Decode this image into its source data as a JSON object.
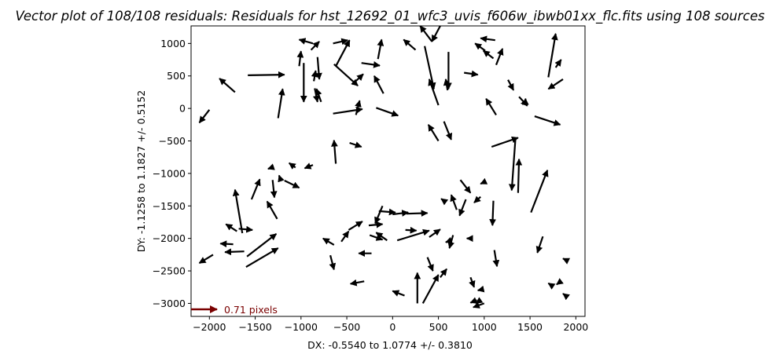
{
  "chart_data": {
    "type": "quiver",
    "title": "Vector plot of 108/108 residuals: Residuals for hst_12692_01_wfc3_uvis_f606w_ibwb01xx_flc.fits using 108 sources",
    "xlabel": "DX: -0.5540 to 1.0774 +/- 0.3810",
    "ylabel": "DY: -1.1258 to 1.1827 +/- 0.5152",
    "xlim": [
      -2200,
      2100
    ],
    "ylim": [
      -3200,
      1270
    ],
    "x_ticks": [
      -2000,
      -1500,
      -1000,
      -500,
      0,
      500,
      1000,
      1500,
      2000
    ],
    "y_ticks": [
      -3000,
      -2500,
      -2000,
      -1500,
      -1000,
      -500,
      0,
      500,
      1000
    ],
    "x_tick_labels": [
      "−2000",
      "−1500",
      "−1000",
      "−500",
      "0",
      "500",
      "1000",
      "1500",
      "2000"
    ],
    "y_tick_labels": [
      "−3000",
      "−2500",
      "−2000",
      "−1500",
      "−1000",
      "−500",
      "0",
      "500",
      "1000"
    ],
    "grid": false,
    "arrow_color": "#000000",
    "key": {
      "label": "0.71 pixels",
      "color": "#7a0000"
    },
    "vectors": [
      {
        "x": -1580,
        "y": 510,
        "x2": -1180,
        "y2": 520
      },
      {
        "x": -1720,
        "y": 250,
        "x2": -1890,
        "y2": 460
      },
      {
        "x": -2000,
        "y": -20,
        "x2": -2110,
        "y2": -220
      },
      {
        "x": -1020,
        "y": 650,
        "x2": -1000,
        "y2": 880
      },
      {
        "x": -970,
        "y": 700,
        "x2": -970,
        "y2": 100
      },
      {
        "x": -820,
        "y": 790,
        "x2": -800,
        "y2": 450
      },
      {
        "x": -890,
        "y": 900,
        "x2": -800,
        "y2": 1030
      },
      {
        "x": -870,
        "y": 1000,
        "x2": -1020,
        "y2": 1060
      },
      {
        "x": -850,
        "y": 310,
        "x2": -820,
        "y2": 100
      },
      {
        "x": -860,
        "y": 420,
        "x2": -840,
        "y2": 580
      },
      {
        "x": -780,
        "y": 100,
        "x2": -830,
        "y2": 300
      },
      {
        "x": -1250,
        "y": -150,
        "x2": -1200,
        "y2": 300
      },
      {
        "x": -650,
        "y": 1000,
        "x2": -490,
        "y2": 1050
      },
      {
        "x": -620,
        "y": 650,
        "x2": -470,
        "y2": 1050
      },
      {
        "x": -640,
        "y": 680,
        "x2": -380,
        "y2": 350
      },
      {
        "x": -440,
        "y": 370,
        "x2": -320,
        "y2": 530
      },
      {
        "x": -160,
        "y": 760,
        "x2": -120,
        "y2": 1060
      },
      {
        "x": -340,
        "y": 700,
        "x2": -140,
        "y2": 660
      },
      {
        "x": -100,
        "y": 230,
        "x2": -200,
        "y2": 500
      },
      {
        "x": -650,
        "y": -80,
        "x2": -330,
        "y2": -10
      },
      {
        "x": -400,
        "y": -100,
        "x2": -360,
        "y2": 120
      },
      {
        "x": -180,
        "y": 10,
        "x2": 60,
        "y2": -110
      },
      {
        "x": 250,
        "y": 900,
        "x2": 120,
        "y2": 1060
      },
      {
        "x": 520,
        "y": 1270,
        "x2": 430,
        "y2": 1030
      },
      {
        "x": 430,
        "y": 1030,
        "x2": 300,
        "y2": 1270
      },
      {
        "x": 350,
        "y": 960,
        "x2": 450,
        "y2": 300
      },
      {
        "x": 500,
        "y": 50,
        "x2": 400,
        "y2": 450
      },
      {
        "x": 610,
        "y": 870,
        "x2": 610,
        "y2": 300
      },
      {
        "x": 600,
        "y": 280,
        "x2": 580,
        "y2": 450
      },
      {
        "x": 780,
        "y": 550,
        "x2": 930,
        "y2": 520
      },
      {
        "x": 1010,
        "y": 890,
        "x2": 900,
        "y2": 1000
      },
      {
        "x": 1100,
        "y": 770,
        "x2": 990,
        "y2": 890
      },
      {
        "x": 1130,
        "y": 670,
        "x2": 1200,
        "y2": 920
      },
      {
        "x": 1260,
        "y": 440,
        "x2": 1320,
        "y2": 280
      },
      {
        "x": 1380,
        "y": 180,
        "x2": 1470,
        "y2": 40
      },
      {
        "x": 1450,
        "y": 60,
        "x2": 1450,
        "y2": 150
      },
      {
        "x": 1120,
        "y": 1050,
        "x2": 960,
        "y2": 1080
      },
      {
        "x": 1130,
        "y": -100,
        "x2": 1020,
        "y2": 150
      },
      {
        "x": 1700,
        "y": 480,
        "x2": 1780,
        "y2": 1150
      },
      {
        "x": 1860,
        "y": 450,
        "x2": 1700,
        "y2": 300
      },
      {
        "x": 1780,
        "y": 630,
        "x2": 1840,
        "y2": 750
      },
      {
        "x": 1550,
        "y": -120,
        "x2": 1830,
        "y2": -250
      },
      {
        "x": 1080,
        "y": -590,
        "x2": 1370,
        "y2": -450
      },
      {
        "x": 1340,
        "y": -470,
        "x2": 1300,
        "y2": -1260
      },
      {
        "x": 1370,
        "y": -1300,
        "x2": 1380,
        "y2": -780
      },
      {
        "x": 1510,
        "y": -1600,
        "x2": 1690,
        "y2": -950
      },
      {
        "x": 500,
        "y": -500,
        "x2": 390,
        "y2": -250
      },
      {
        "x": 560,
        "y": -200,
        "x2": 640,
        "y2": -480
      },
      {
        "x": 740,
        "y": -1100,
        "x2": 850,
        "y2": -1300
      },
      {
        "x": 960,
        "y": -1360,
        "x2": 890,
        "y2": -1450
      },
      {
        "x": 700,
        "y": -1560,
        "x2": 640,
        "y2": -1330
      },
      {
        "x": 800,
        "y": -1400,
        "x2": 730,
        "y2": -1650
      },
      {
        "x": 1100,
        "y": -1420,
        "x2": 1090,
        "y2": -1800
      },
      {
        "x": 1110,
        "y": -2180,
        "x2": 1140,
        "y2": -2430
      },
      {
        "x": 1640,
        "y": -1970,
        "x2": 1580,
        "y2": -2220
      },
      {
        "x": 660,
        "y": -1950,
        "x2": 620,
        "y2": -2150
      },
      {
        "x": 850,
        "y": -2600,
        "x2": 890,
        "y2": -2750
      },
      {
        "x": 920,
        "y": -2950,
        "x2": 850,
        "y2": -2990
      },
      {
        "x": 1000,
        "y": -3000,
        "x2": 880,
        "y2": -3060
      },
      {
        "x": 520,
        "y": -2600,
        "x2": 590,
        "y2": -2470
      },
      {
        "x": 330,
        "y": -3000,
        "x2": 500,
        "y2": -2560
      },
      {
        "x": 270,
        "y": -3000,
        "x2": 270,
        "y2": -2530
      },
      {
        "x": 130,
        "y": -2880,
        "x2": 0,
        "y2": -2810
      },
      {
        "x": -310,
        "y": -2660,
        "x2": -460,
        "y2": -2700
      },
      {
        "x": -680,
        "y": -2260,
        "x2": -640,
        "y2": -2480
      },
      {
        "x": -230,
        "y": -2230,
        "x2": -370,
        "y2": -2230
      },
      {
        "x": -60,
        "y": -2030,
        "x2": -180,
        "y2": -1910
      },
      {
        "x": -250,
        "y": -1950,
        "x2": -110,
        "y2": -2020
      },
      {
        "x": 380,
        "y": -2290,
        "x2": 440,
        "y2": -2500
      },
      {
        "x": 50,
        "y": -2030,
        "x2": 400,
        "y2": -1880
      },
      {
        "x": 140,
        "y": -1870,
        "x2": 260,
        "y2": -1880
      },
      {
        "x": 400,
        "y": -1980,
        "x2": 520,
        "y2": -1860
      },
      {
        "x": -150,
        "y": -1580,
        "x2": 30,
        "y2": -1600
      },
      {
        "x": 0,
        "y": -1630,
        "x2": 170,
        "y2": -1600
      },
      {
        "x": 150,
        "y": -1620,
        "x2": 380,
        "y2": -1610
      },
      {
        "x": -480,
        "y": -1870,
        "x2": -330,
        "y2": -1740
      },
      {
        "x": -260,
        "y": -1800,
        "x2": -110,
        "y2": -1780
      },
      {
        "x": -110,
        "y": -1500,
        "x2": -190,
        "y2": -1770
      },
      {
        "x": -560,
        "y": -2050,
        "x2": -480,
        "y2": -1890
      },
      {
        "x": -640,
        "y": -2100,
        "x2": -760,
        "y2": -2000
      },
      {
        "x": -620,
        "y": -850,
        "x2": -640,
        "y2": -490
      },
      {
        "x": -470,
        "y": -530,
        "x2": -340,
        "y2": -590
      },
      {
        "x": -1060,
        "y": -910,
        "x2": -1130,
        "y2": -840
      },
      {
        "x": -870,
        "y": -870,
        "x2": -960,
        "y2": -920
      },
      {
        "x": -1180,
        "y": -1110,
        "x2": -1020,
        "y2": -1220
      },
      {
        "x": -1220,
        "y": -1110,
        "x2": -1240,
        "y2": -1030
      },
      {
        "x": -1310,
        "y": -1100,
        "x2": -1290,
        "y2": -1370
      },
      {
        "x": -1260,
        "y": -1700,
        "x2": -1370,
        "y2": -1430
      },
      {
        "x": -1540,
        "y": -1400,
        "x2": -1450,
        "y2": -1090
      },
      {
        "x": -1640,
        "y": -1920,
        "x2": -1720,
        "y2": -1250
      },
      {
        "x": -1680,
        "y": -1850,
        "x2": -1530,
        "y2": -1870
      },
      {
        "x": -1700,
        "y": -1890,
        "x2": -1820,
        "y2": -1780
      },
      {
        "x": -1740,
        "y": -2090,
        "x2": -1880,
        "y2": -2080
      },
      {
        "x": -1620,
        "y": -2200,
        "x2": -1830,
        "y2": -2210
      },
      {
        "x": -1600,
        "y": -2440,
        "x2": -1250,
        "y2": -2150
      },
      {
        "x": -1960,
        "y": -2250,
        "x2": -2110,
        "y2": -2380
      },
      {
        "x": -1590,
        "y": -2280,
        "x2": -1270,
        "y2": -1930
      },
      {
        "x": 1800,
        "y": -2700,
        "x2": 1790,
        "y2": -2710
      },
      {
        "x": 1870,
        "y": -2860,
        "x2": 1860,
        "y2": -2850
      },
      {
        "x": 1890,
        "y": -2330,
        "x2": 1860,
        "y2": -2310
      },
      {
        "x": 540,
        "y": -1400,
        "x2": 530,
        "y2": -1390
      },
      {
        "x": 820,
        "y": -2000,
        "x2": 810,
        "y2": -2000
      },
      {
        "x": 990,
        "y": -1140,
        "x2": 960,
        "y2": -1160
      },
      {
        "x": 960,
        "y": -2790,
        "x2": 930,
        "y2": -2800
      },
      {
        "x": 930,
        "y": -2980,
        "x2": 910,
        "y2": -3000
      },
      {
        "x": 1710,
        "y": -2700,
        "x2": 1700,
        "y2": -2690
      },
      {
        "x": 600,
        "y": -2050,
        "x2": 580,
        "y2": -2060
      },
      {
        "x": -1340,
        "y": -920,
        "x2": -1360,
        "y2": -930
      }
    ]
  }
}
